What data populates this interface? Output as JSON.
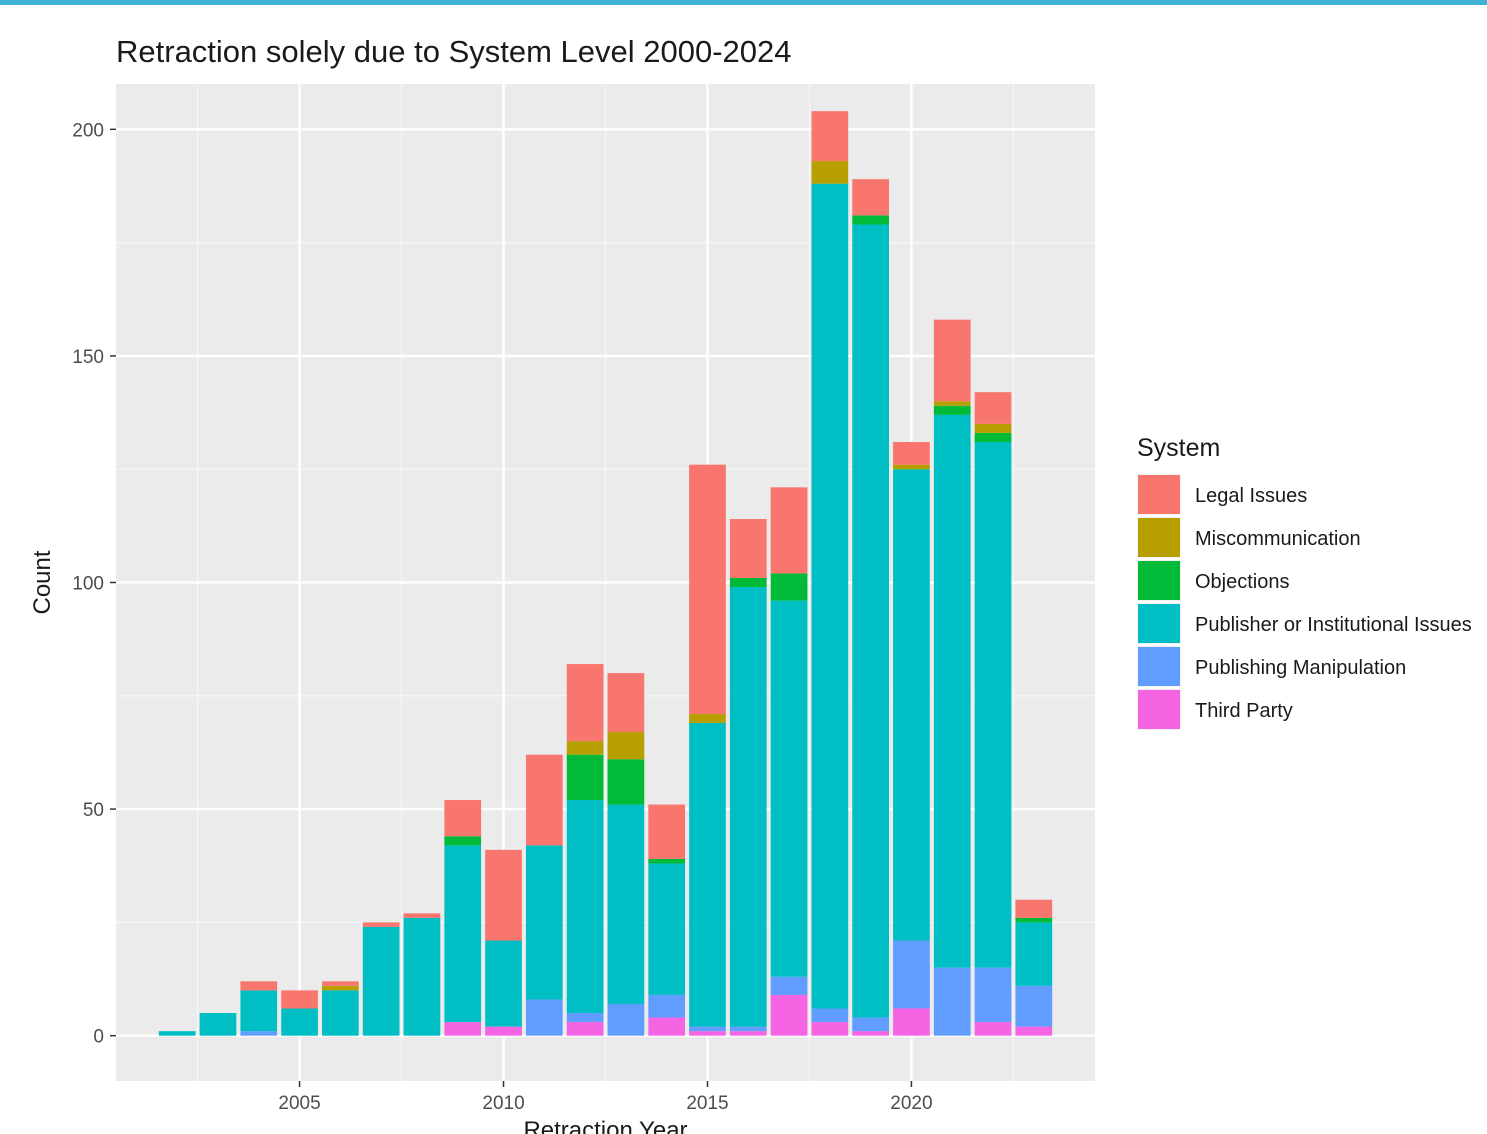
{
  "chart_data": {
    "type": "bar",
    "stacked": true,
    "title": "Retraction solely due to System Level 2000-2024",
    "xlabel": "Retraction Year",
    "ylabel": "Count",
    "xlim": [
      2000.5,
      2024.5
    ],
    "ylim": [
      -10,
      210
    ],
    "x_ticks": [
      2005,
      2010,
      2015,
      2020
    ],
    "y_ticks": [
      0,
      50,
      100,
      150,
      200
    ],
    "grid": true,
    "legend_title": "System",
    "legend_position": "right",
    "x": [
      2002,
      2003,
      2004,
      2005,
      2006,
      2007,
      2008,
      2009,
      2010,
      2011,
      2012,
      2013,
      2014,
      2015,
      2016,
      2017,
      2018,
      2019,
      2020,
      2021,
      2022,
      2023
    ],
    "series": [
      {
        "name": "Third Party",
        "color": "#f564e3",
        "values": [
          0,
          0,
          0,
          0,
          0,
          0,
          0,
          3,
          2,
          0,
          3,
          0,
          4,
          1,
          1,
          9,
          3,
          1,
          6,
          0,
          3,
          2
        ]
      },
      {
        "name": "Publishing Manipulation",
        "color": "#619cff",
        "values": [
          0,
          0,
          1,
          0,
          0,
          0,
          0,
          0,
          0,
          8,
          2,
          7,
          5,
          1,
          1,
          4,
          3,
          3,
          15,
          15,
          12,
          9
        ]
      },
      {
        "name": "Publisher or Institutional Issues",
        "color": "#00bfc4",
        "values": [
          1,
          5,
          9,
          6,
          10,
          24,
          26,
          39,
          19,
          34,
          47,
          44,
          29,
          67,
          97,
          83,
          182,
          175,
          104,
          122,
          116,
          14
        ]
      },
      {
        "name": "Objections",
        "color": "#00ba38",
        "values": [
          0,
          0,
          0,
          0,
          0,
          0,
          0,
          2,
          0,
          0,
          10,
          10,
          1,
          0,
          2,
          6,
          0,
          2,
          0,
          2,
          2,
          1
        ]
      },
      {
        "name": "Miscommunication",
        "color": "#b79f00",
        "values": [
          0,
          0,
          0,
          0,
          1,
          0,
          0,
          0,
          0,
          0,
          3,
          6,
          0,
          2,
          0,
          0,
          5,
          0,
          1,
          1,
          2,
          0
        ]
      },
      {
        "name": "Legal Issues",
        "color": "#f8766d",
        "values": [
          0,
          0,
          2,
          4,
          1,
          1,
          1,
          8,
          20,
          20,
          17,
          13,
          12,
          55,
          13,
          19,
          11,
          8,
          5,
          18,
          7,
          4
        ]
      }
    ],
    "legend_order": [
      "Legal Issues",
      "Miscommunication",
      "Objections",
      "Publisher or Institutional Issues",
      "Publishing Manipulation",
      "Third Party"
    ]
  }
}
